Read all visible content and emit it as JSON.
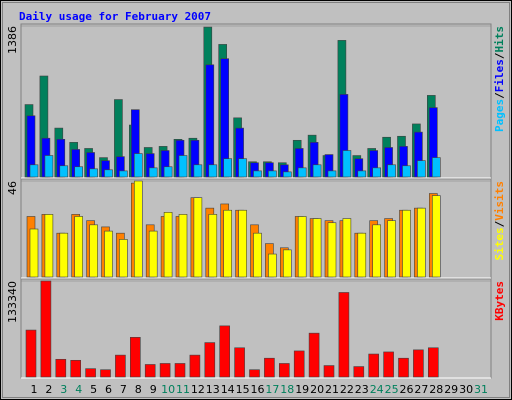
{
  "chart_data": [
    {
      "type": "bar",
      "title": "Daily usage for February 2007",
      "ylim": [
        0,
        1386
      ],
      "yticks": [
        1386
      ],
      "series": [
        {
          "name": "Hits",
          "color": "#00805c",
          "values": [
            665,
            927,
            449,
            318,
            262,
            178,
            711,
            477,
            271,
            281,
            346,
            356,
            1376,
            1217,
            543,
            140,
            140,
            131,
            337,
            384,
            197,
            1254,
            197,
            262,
            365,
            374,
            487,
            749,
            0,
            0,
            0
          ]
        },
        {
          "name": "Files",
          "color": "#0000ff",
          "values": [
            562,
            356,
            346,
            253,
            225,
            150,
            187,
            618,
            215,
            243,
            337,
            337,
            1030,
            1086,
            449,
            131,
            131,
            112,
            262,
            318,
            206,
            758,
            168,
            243,
            271,
            281,
            412,
            637,
            0,
            0,
            0
          ]
        },
        {
          "name": "Pages",
          "color": "#00c0ff",
          "values": [
            112,
            197,
            103,
            94,
            75,
            66,
            56,
            215,
            84,
            94,
            197,
            112,
            112,
            168,
            168,
            56,
            56,
            47,
            84,
            112,
            56,
            243,
            56,
            84,
            112,
            103,
            150,
            178,
            0,
            0,
            0
          ]
        }
      ],
      "legend_separator": "/"
    },
    {
      "type": "bar",
      "ylim": [
        0,
        46
      ],
      "yticks": [
        46
      ],
      "series": [
        {
          "name": "Visits",
          "color": "#ff8000",
          "values": [
            29,
            30,
            21,
            30,
            27,
            24,
            21,
            45,
            25,
            29,
            29,
            38,
            33,
            35,
            32,
            25,
            16,
            14,
            29,
            28,
            27,
            27,
            21,
            27,
            28,
            32,
            33,
            40,
            0,
            0,
            0
          ]
        },
        {
          "name": "Sites",
          "color": "#ffff00",
          "values": [
            23,
            30,
            21,
            29,
            25,
            22,
            18,
            46,
            22,
            31,
            30,
            38,
            30,
            32,
            32,
            21,
            11,
            13,
            29,
            28,
            26,
            28,
            21,
            25,
            27,
            32,
            33,
            39,
            0,
            0,
            0
          ]
        }
      ],
      "legend_separator": "/"
    },
    {
      "type": "bar",
      "ylim": [
        0,
        133340
      ],
      "yticks": [
        133340
      ],
      "series": [
        {
          "name": "KBytes",
          "color": "#ff0000",
          "values": [
            65200,
            133340,
            24600,
            23200,
            11600,
            10100,
            30400,
            55100,
            17400,
            18800,
            18800,
            30400,
            47800,
            71000,
            40600,
            10100,
            26100,
            18800,
            36200,
            60900,
            15900,
            117400,
            14500,
            31900,
            34800,
            26100,
            37700,
            40600,
            0,
            0,
            0
          ]
        }
      ],
      "legend_separator": "/",
      "categories": [
        "1",
        "2",
        "3",
        "4",
        "5",
        "6",
        "7",
        "8",
        "9",
        "10",
        "11",
        "12",
        "13",
        "14",
        "15",
        "16",
        "17",
        "18",
        "19",
        "20",
        "21",
        "22",
        "23",
        "24",
        "25",
        "26",
        "27",
        "28",
        "29",
        "30",
        "31"
      ],
      "category_colors": [
        "#000000",
        "#000000",
        "#00805c",
        "#00805c",
        "#000000",
        "#000000",
        "#000000",
        "#000000",
        "#000000",
        "#00805c",
        "#00805c",
        "#000000",
        "#000000",
        "#000000",
        "#000000",
        "#000000",
        "#00805c",
        "#00805c",
        "#000000",
        "#000000",
        "#000000",
        "#000000",
        "#000000",
        "#00805c",
        "#00805c",
        "#000000",
        "#000000",
        "#000000",
        "#000000",
        "#000000",
        "#00805c"
      ]
    }
  ]
}
